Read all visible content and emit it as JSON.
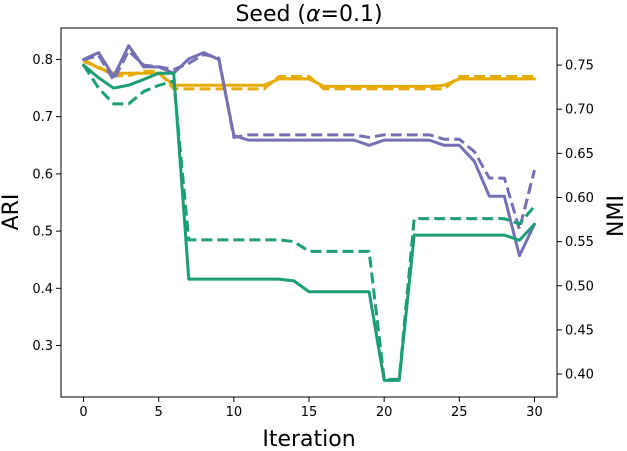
{
  "chart_data": {
    "type": "line",
    "title": "Seed (α=0.1)",
    "title_parts": {
      "prefix": "Seed (",
      "symbol": "α",
      "suffix": "=0.1)"
    },
    "xlabel": "Iteration",
    "ylabel_left": "ARI",
    "ylabel_right": "NMI",
    "xlim": [
      -1.5,
      31.5
    ],
    "ylim_left": [
      0.21,
      0.855
    ],
    "ylim_right": [
      0.374,
      0.792
    ],
    "x_ticks": [
      0,
      5,
      10,
      15,
      20,
      25,
      30
    ],
    "y_ticks_left": [
      0.3,
      0.4,
      0.5,
      0.6,
      0.7,
      0.8
    ],
    "y_ticks_right": [
      0.4,
      0.45,
      0.5,
      0.55,
      0.6,
      0.65,
      0.7,
      0.75
    ],
    "x_tick_labels": [
      "0",
      "5",
      "10",
      "15",
      "20",
      "25",
      "30"
    ],
    "y_tick_labels_left": [
      "0.3",
      "0.4",
      "0.5",
      "0.6",
      "0.7",
      "0.8"
    ],
    "y_tick_labels_right": [
      "0.40",
      "0.45",
      "0.50",
      "0.55",
      "0.60",
      "0.65",
      "0.70",
      "0.75"
    ],
    "x": [
      0,
      1,
      2,
      3,
      4,
      5,
      6,
      7,
      8,
      9,
      10,
      11,
      12,
      13,
      14,
      15,
      16,
      17,
      18,
      19,
      20,
      21,
      22,
      23,
      24,
      25,
      26,
      27,
      28,
      29,
      30
    ],
    "series": [
      {
        "color": "#e6ab02",
        "dash": false,
        "axis": "left",
        "values": [
          0.8,
          0.785,
          0.776,
          0.776,
          0.776,
          0.776,
          0.755,
          0.755,
          0.755,
          0.755,
          0.755,
          0.755,
          0.755,
          0.766,
          0.766,
          0.766,
          0.753,
          0.753,
          0.753,
          0.753,
          0.753,
          0.753,
          0.753,
          0.753,
          0.755,
          0.766,
          0.766,
          0.766,
          0.766,
          0.766,
          0.766
        ]
      },
      {
        "color": "#e6ab02",
        "dash": true,
        "axis": "right",
        "values": [
          0.754,
          0.748,
          0.738,
          0.738,
          0.743,
          0.743,
          0.723,
          0.723,
          0.723,
          0.723,
          0.723,
          0.723,
          0.723,
          0.737,
          0.737,
          0.737,
          0.723,
          0.723,
          0.723,
          0.723,
          0.723,
          0.723,
          0.723,
          0.723,
          0.723,
          0.737,
          0.737,
          0.737,
          0.737,
          0.737,
          0.737
        ]
      },
      {
        "color": "#7570b3",
        "dash": false,
        "axis": "left",
        "values": [
          0.8,
          0.812,
          0.77,
          0.824,
          0.787,
          0.787,
          0.776,
          0.801,
          0.812,
          0.8,
          0.667,
          0.659,
          0.659,
          0.659,
          0.659,
          0.659,
          0.659,
          0.659,
          0.659,
          0.65,
          0.659,
          0.659,
          0.659,
          0.659,
          0.65,
          0.65,
          0.622,
          0.561,
          0.561,
          0.457,
          0.512
        ]
      },
      {
        "color": "#7570b3",
        "dash": true,
        "axis": "right",
        "values": [
          0.756,
          0.761,
          0.733,
          0.766,
          0.75,
          0.748,
          0.745,
          0.752,
          0.762,
          0.758,
          0.668,
          0.671,
          0.671,
          0.671,
          0.671,
          0.671,
          0.671,
          0.671,
          0.671,
          0.668,
          0.671,
          0.671,
          0.671,
          0.671,
          0.666,
          0.666,
          0.652,
          0.622,
          0.622,
          0.564,
          0.631
        ]
      },
      {
        "color": "#1b9e77",
        "dash": false,
        "axis": "left",
        "values": [
          0.79,
          0.768,
          0.75,
          0.755,
          0.765,
          0.776,
          0.776,
          0.416,
          0.416,
          0.416,
          0.416,
          0.416,
          0.416,
          0.416,
          0.413,
          0.394,
          0.394,
          0.394,
          0.394,
          0.394,
          0.239,
          0.239,
          0.493,
          0.493,
          0.493,
          0.493,
          0.493,
          0.493,
          0.493,
          0.484,
          0.512
        ]
      },
      {
        "color": "#1b9e77",
        "dash": true,
        "axis": "right",
        "values": [
          0.75,
          0.724,
          0.706,
          0.706,
          0.72,
          0.727,
          0.732,
          0.552,
          0.552,
          0.552,
          0.552,
          0.552,
          0.552,
          0.552,
          0.55,
          0.539,
          0.539,
          0.539,
          0.539,
          0.539,
          0.394,
          0.394,
          0.576,
          0.576,
          0.576,
          0.576,
          0.576,
          0.576,
          0.576,
          0.57,
          0.59
        ]
      }
    ],
    "grid": false,
    "legend": "none"
  }
}
